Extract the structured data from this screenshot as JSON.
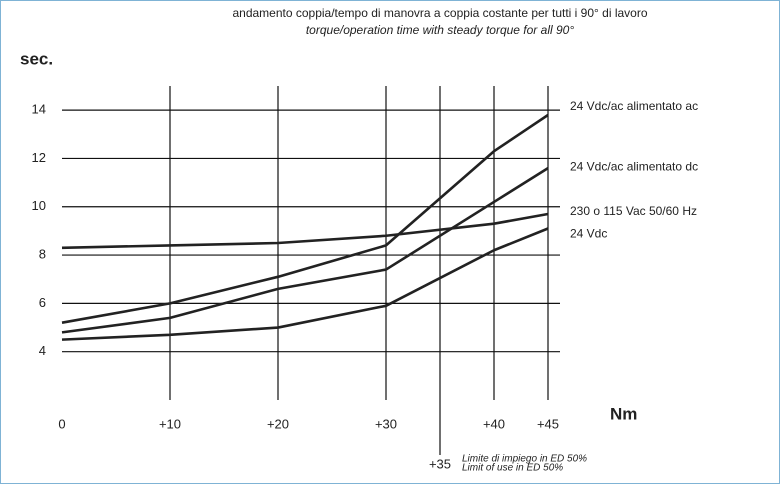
{
  "chart_data": {
    "type": "line",
    "title": "andamento coppia/tempo di manovra a coppia costante per tutti i 90° di lavoro",
    "subtitle": "torque/operation time with steady torque for all 90°",
    "y_label": "sec.",
    "x_label": "Nm",
    "x": [
      0,
      10,
      20,
      30,
      40,
      45
    ],
    "series": [
      {
        "name": "24 Vdc/ac alimentato ac",
        "color": "#222222",
        "values": [
          5.2,
          6.0,
          7.1,
          8.4,
          12.3,
          13.8
        ]
      },
      {
        "name": "24 Vdc/ac alimentato dc",
        "color": "#222222",
        "values": [
          4.8,
          5.4,
          6.6,
          7.4,
          10.2,
          11.6
        ]
      },
      {
        "name": "230 o 115 Vac 50/60 Hz",
        "color": "#222222",
        "values": [
          8.3,
          8.4,
          8.5,
          8.8,
          9.3,
          9.7
        ]
      },
      {
        "name": "24 Vdc",
        "color": "#222222",
        "values": [
          4.5,
          4.7,
          5.0,
          5.9,
          8.2,
          9.1
        ]
      }
    ],
    "xlim": [
      0,
      45
    ],
    "ylim": [
      2,
      15
    ],
    "xticks": [
      0,
      {
        "value": 10,
        "label": "+10"
      },
      {
        "value": 20,
        "label": "+20"
      },
      {
        "value": 30,
        "label": "+30"
      },
      {
        "value": 40,
        "label": "+40"
      },
      {
        "value": 45,
        "label": "+45"
      }
    ],
    "yticks": [
      4,
      6,
      8,
      10,
      12,
      14
    ],
    "limit": {
      "x": {
        "value": 35,
        "label": "+35"
      },
      "text": [
        "Limite di impiego in ED 50%",
        "Limit of use in ED 50%"
      ]
    },
    "grid": true
  }
}
